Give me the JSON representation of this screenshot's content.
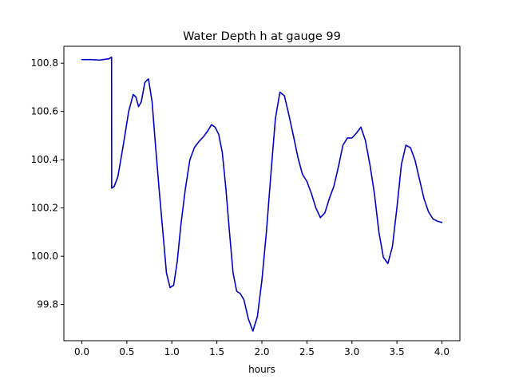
{
  "chart_data": {
    "type": "line",
    "title": "Water Depth h at gauge 99",
    "xlabel": "hours",
    "ylabel": "",
    "xlim": [
      -0.2,
      4.2
    ],
    "ylim": [
      99.65,
      100.87
    ],
    "grid": false,
    "xticks": [
      0.0,
      0.5,
      1.0,
      1.5,
      2.0,
      2.5,
      3.0,
      3.5,
      4.0
    ],
    "xtick_labels": [
      "0.0",
      "0.5",
      "1.0",
      "1.5",
      "2.0",
      "2.5",
      "3.0",
      "3.5",
      "4.0"
    ],
    "yticks": [
      99.8,
      100.0,
      100.2,
      100.4,
      100.6,
      100.8
    ],
    "ytick_labels": [
      "99.8",
      "100.0",
      "100.2",
      "100.4",
      "100.6",
      "100.8"
    ],
    "series": [
      {
        "color": "#0000cc",
        "x": [
          0.0,
          0.1,
          0.2,
          0.3,
          0.33,
          0.331,
          0.36,
          0.4,
          0.46,
          0.52,
          0.57,
          0.6,
          0.63,
          0.66,
          0.7,
          0.74,
          0.78,
          0.82,
          0.86,
          0.9,
          0.94,
          0.98,
          1.02,
          1.06,
          1.1,
          1.15,
          1.2,
          1.25,
          1.3,
          1.35,
          1.4,
          1.44,
          1.48,
          1.52,
          1.56,
          1.6,
          1.64,
          1.68,
          1.72,
          1.76,
          1.8,
          1.85,
          1.9,
          1.95,
          2.0,
          2.05,
          2.1,
          2.15,
          2.2,
          2.25,
          2.3,
          2.35,
          2.4,
          2.45,
          2.5,
          2.55,
          2.6,
          2.65,
          2.7,
          2.75,
          2.8,
          2.85,
          2.9,
          2.95,
          3.0,
          3.05,
          3.1,
          3.15,
          3.2,
          3.25,
          3.3,
          3.35,
          3.4,
          3.45,
          3.5,
          3.55,
          3.6,
          3.65,
          3.7,
          3.75,
          3.8,
          3.85,
          3.9,
          3.95,
          4.0
        ],
        "y": [
          100.815,
          100.815,
          100.813,
          100.818,
          100.825,
          100.282,
          100.29,
          100.33,
          100.46,
          100.6,
          100.67,
          100.66,
          100.62,
          100.64,
          100.72,
          100.735,
          100.64,
          100.45,
          100.27,
          100.1,
          99.93,
          99.87,
          99.88,
          99.98,
          100.13,
          100.28,
          100.4,
          100.45,
          100.475,
          100.495,
          100.52,
          100.545,
          100.535,
          100.505,
          100.43,
          100.28,
          100.1,
          99.93,
          99.855,
          99.845,
          99.82,
          99.74,
          99.69,
          99.75,
          99.9,
          100.1,
          100.34,
          100.57,
          100.68,
          100.665,
          100.585,
          100.5,
          100.41,
          100.34,
          100.31,
          100.26,
          100.2,
          100.16,
          100.18,
          100.24,
          100.29,
          100.37,
          100.46,
          100.49,
          100.49,
          100.51,
          100.535,
          100.48,
          100.38,
          100.26,
          100.1,
          99.995,
          99.97,
          100.04,
          100.2,
          100.38,
          100.46,
          100.45,
          100.4,
          100.32,
          100.24,
          100.185,
          100.155,
          100.145,
          100.14
        ]
      }
    ]
  }
}
